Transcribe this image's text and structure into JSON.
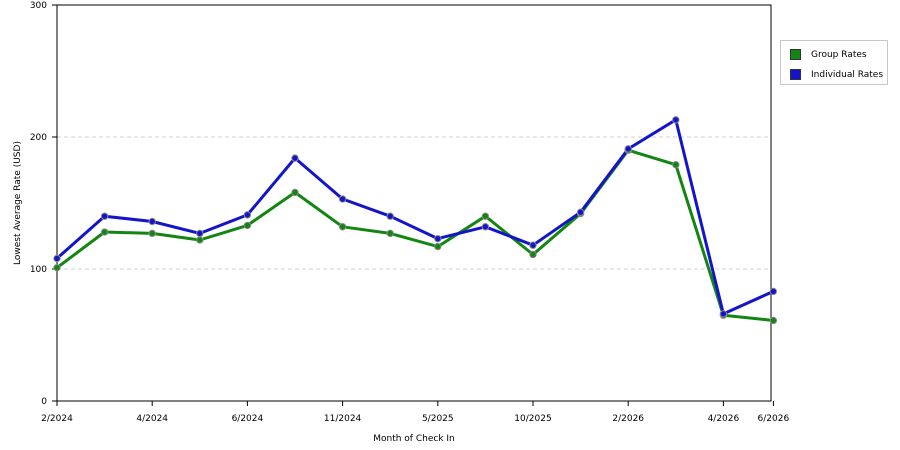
{
  "chart_data": {
    "type": "line",
    "title": "",
    "xlabel": "Month of Check In",
    "ylabel": "Lowest Average Rate (USD)",
    "ylim": [
      0,
      300
    ],
    "yticks": [
      0,
      100,
      200,
      300
    ],
    "grid": "horizontal dashed at 100 and 200",
    "legend_position": "right",
    "x_tick_labels": [
      {
        "index": 0,
        "label": "2/2024"
      },
      {
        "index": 2,
        "label": "4/2024"
      },
      {
        "index": 4,
        "label": "6/2024"
      },
      {
        "index": 6,
        "label": "11/2024"
      },
      {
        "index": 8,
        "label": "5/2025"
      },
      {
        "index": 10,
        "label": "10/2025"
      },
      {
        "index": 12,
        "label": "2/2026"
      },
      {
        "index": 14,
        "label": "4/2026"
      },
      {
        "index": 15,
        "label": "6/2026"
      }
    ],
    "point_count": 16,
    "point_positions": [
      0,
      1,
      2,
      3,
      4,
      5,
      6,
      7,
      8,
      9,
      10,
      11,
      12,
      13,
      14,
      15.05
    ],
    "series": [
      {
        "name": "Group Rates",
        "color": "#138513",
        "values": [
          101,
          128,
          127,
          122,
          133,
          158,
          132,
          127,
          117,
          140,
          111,
          142,
          190,
          179,
          65,
          61
        ]
      },
      {
        "name": "Individual Rates",
        "color": "#1414c8",
        "values": [
          108,
          140,
          136,
          127,
          141,
          184,
          153,
          140,
          123,
          132,
          118,
          143,
          191,
          213,
          66,
          83
        ]
      }
    ]
  }
}
